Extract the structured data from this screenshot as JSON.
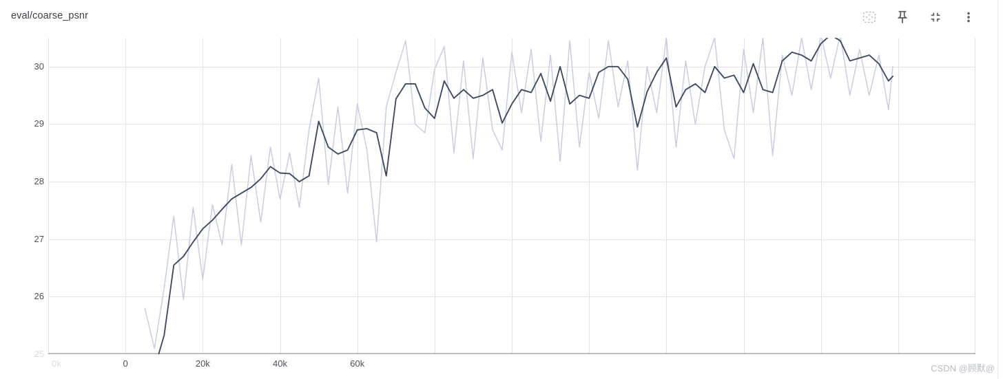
{
  "card": {
    "title": "eval/coarse_psnr"
  },
  "toolbar": {
    "icons": [
      {
        "name": "fit-domain-to-data",
        "color": "#b9bdc4"
      },
      {
        "name": "pin-card",
        "color": "#5f6368"
      },
      {
        "name": "collapse-card",
        "color": "#5f6368"
      },
      {
        "name": "more-options",
        "color": "#5f6368"
      }
    ]
  },
  "watermark": "CSDN @顾默@",
  "chart_data": {
    "type": "line",
    "title": "eval/coarse_psnr",
    "xlabel": "",
    "ylabel": "",
    "xlim": [
      -20000,
      220000
    ],
    "ylim": [
      25,
      30.5
    ],
    "grid": true,
    "x_tick_interval": 20000,
    "x_ticks": [
      {
        "step": -20000,
        "label": "0k",
        "faded": true,
        "dx": 12
      },
      {
        "step": 0,
        "label": "0"
      },
      {
        "step": 20000,
        "label": "20k"
      },
      {
        "step": 40000,
        "label": "40k"
      },
      {
        "step": 60000,
        "label": "60k"
      }
    ],
    "y_ticks": [
      {
        "value": 25,
        "label": "25",
        "faded": true
      },
      {
        "value": 26,
        "label": "26"
      },
      {
        "value": 27,
        "label": "27"
      },
      {
        "value": 28,
        "label": "28"
      },
      {
        "value": 29,
        "label": "29"
      },
      {
        "value": 30,
        "label": "30"
      }
    ],
    "colors": {
      "gridline": "#e4e4e4",
      "border": "#e0e0e0",
      "axis": "#a9a9a9",
      "raw": "#c8cee0",
      "smoothed": "#3f4a64"
    },
    "x": [
      5000,
      7500,
      10000,
      12500,
      15000,
      17500,
      20000,
      22500,
      25000,
      27500,
      30000,
      32500,
      35000,
      37500,
      40000,
      42500,
      45000,
      47500,
      50000,
      52500,
      55000,
      57500,
      60000,
      62500,
      65000,
      67500,
      70000,
      72500,
      75000,
      77500,
      80000,
      82500,
      85000,
      87500,
      90000,
      92500,
      95000,
      97500,
      100000,
      102500,
      105000,
      107500,
      110000,
      112500,
      115000,
      117500,
      120000,
      122500,
      125000,
      127500,
      130000,
      132500,
      135000,
      137500,
      140000,
      142500,
      145000,
      147500,
      150000,
      152500,
      155000,
      157500,
      160000,
      162500,
      165000,
      167500,
      170000,
      172500,
      175000,
      177500,
      180000,
      182500,
      185000,
      187500,
      190000,
      192500,
      195000,
      197500,
      198600
    ],
    "series": [
      {
        "name": "raw",
        "color_key": "raw",
        "width": 1.5,
        "values": [
          25.8,
          25.1,
          26.15,
          27.4,
          25.95,
          27.55,
          26.3,
          27.6,
          26.9,
          28.3,
          26.9,
          28.45,
          27.3,
          28.6,
          27.7,
          28.5,
          27.55,
          28.9,
          29.8,
          27.95,
          29.3,
          27.8,
          29.35,
          28.55,
          26.95,
          29.3,
          29.9,
          30.45,
          29.0,
          28.85,
          29.95,
          30.35,
          28.5,
          30.1,
          28.4,
          30.15,
          28.9,
          28.55,
          30.25,
          29.2,
          30.3,
          28.7,
          30.2,
          28.35,
          30.45,
          28.6,
          29.9,
          29.1,
          30.45,
          29.3,
          30.1,
          28.2,
          30.0,
          29.2,
          30.5,
          28.6,
          30.1,
          29.0,
          30.0,
          30.5,
          28.9,
          28.4,
          30.3,
          29.2,
          30.5,
          28.45,
          30.2,
          29.5,
          30.5,
          29.6,
          30.55,
          29.8,
          30.55,
          29.5,
          30.3,
          29.5,
          30.2,
          29.25,
          30.0
        ]
      },
      {
        "name": "smoothed",
        "color_key": "smoothed",
        "width": 1.9,
        "values": [
          24.4,
          24.75,
          25.33,
          26.55,
          26.7,
          26.95,
          27.18,
          27.33,
          27.52,
          27.7,
          27.8,
          27.9,
          28.05,
          28.26,
          28.15,
          28.14,
          28.0,
          28.1,
          29.05,
          28.6,
          28.48,
          28.55,
          28.9,
          28.92,
          28.85,
          28.1,
          29.44,
          29.7,
          29.7,
          29.28,
          29.1,
          29.75,
          29.45,
          29.6,
          29.45,
          29.5,
          29.6,
          29.02,
          29.35,
          29.6,
          29.55,
          29.88,
          29.4,
          30.0,
          29.35,
          29.5,
          29.45,
          29.9,
          30.0,
          30.0,
          29.78,
          28.95,
          29.56,
          29.9,
          30.15,
          29.3,
          29.6,
          29.7,
          29.55,
          30.0,
          29.8,
          29.85,
          29.55,
          30.05,
          29.6,
          29.55,
          30.1,
          30.25,
          30.2,
          30.1,
          30.4,
          30.55,
          30.45,
          30.1,
          30.15,
          30.2,
          30.05,
          29.75,
          29.83
        ]
      }
    ]
  }
}
